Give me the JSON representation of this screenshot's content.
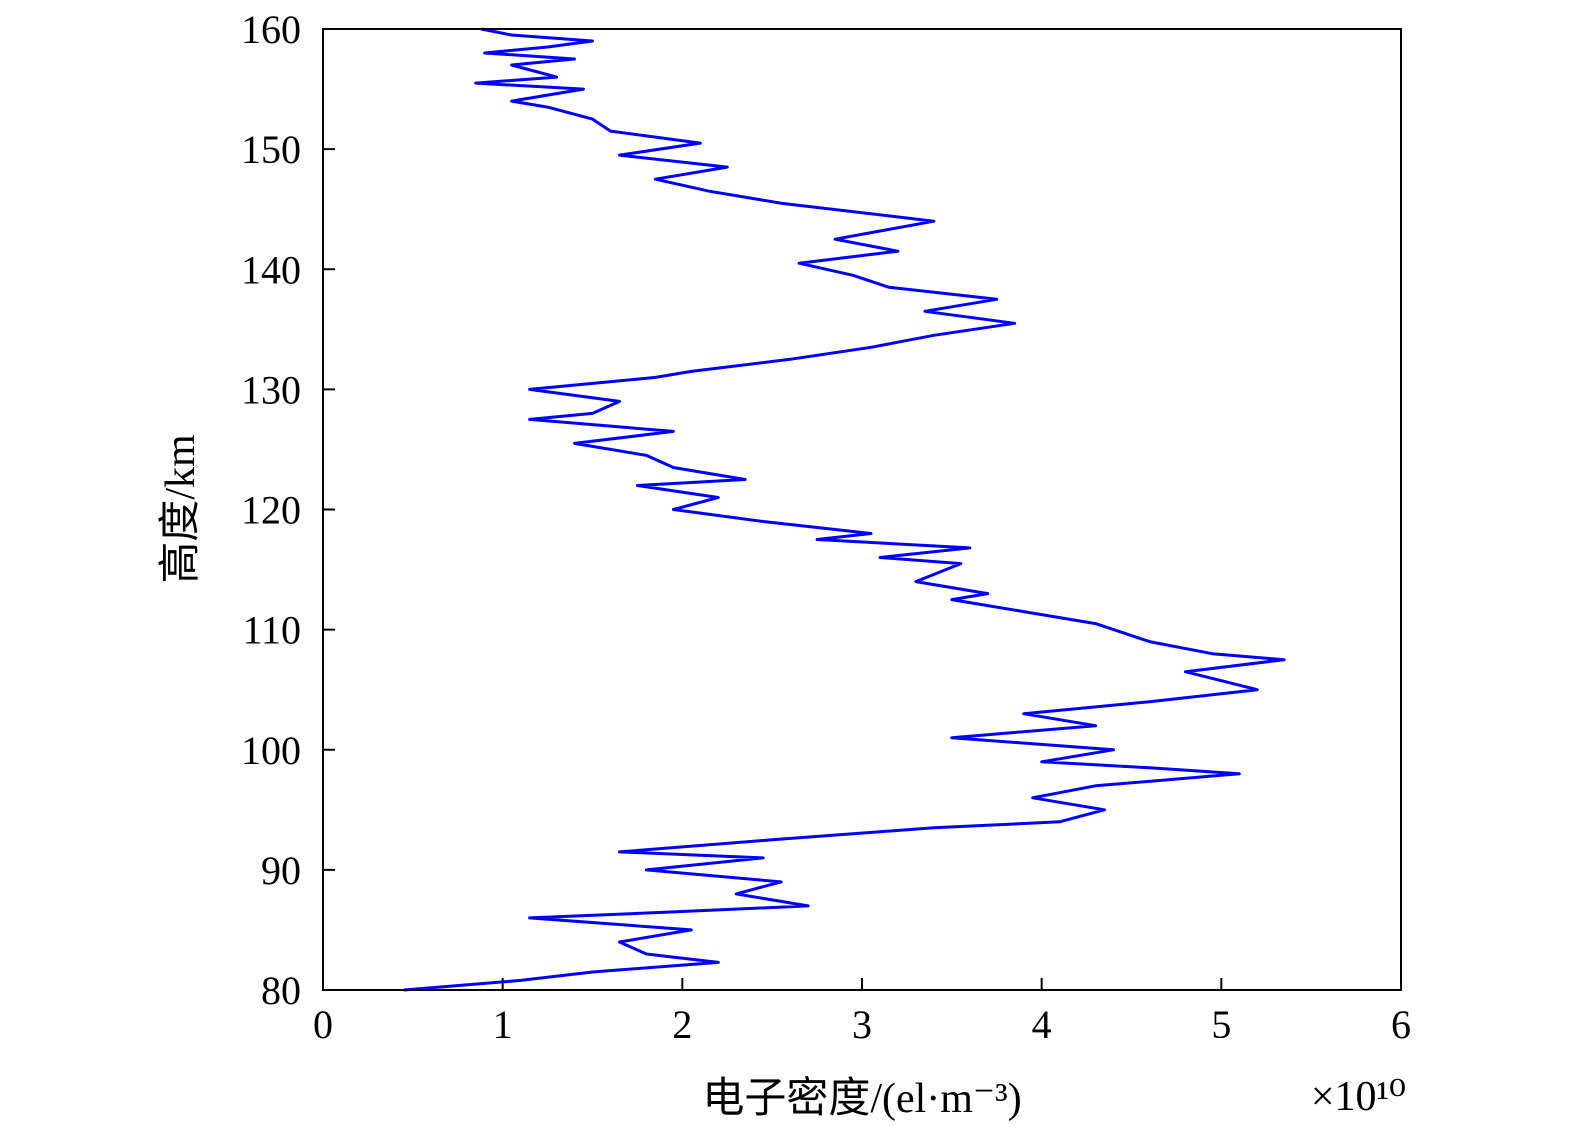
{
  "chart_data": {
    "type": "line",
    "title": "",
    "xlabel": "电子密度/(el·m⁻³)",
    "ylabel": "高度/km",
    "x_scale_note": "×10¹⁰",
    "xlim": [
      0,
      6
    ],
    "ylim": [
      80,
      160
    ],
    "x_ticks": [
      "0",
      "1",
      "2",
      "3",
      "4",
      "5",
      "6"
    ],
    "y_ticks": [
      "80",
      "90",
      "100",
      "110",
      "120",
      "130",
      "140",
      "150",
      "160"
    ],
    "grid": false,
    "legend": "none",
    "series": [
      {
        "color": "#0000ff",
        "x": [
          0.45,
          1.1,
          1.5,
          2.2,
          1.8,
          1.65,
          2.05,
          1.6,
          1.15,
          1.95,
          2.7,
          2.3,
          2.55,
          1.8,
          2.45,
          1.65,
          2.5,
          3.4,
          4.1,
          4.35,
          3.95,
          4.3,
          5.1,
          4.6,
          4.0,
          4.4,
          3.5,
          4.3,
          3.9,
          4.6,
          5.2,
          4.8,
          5.35,
          4.95,
          4.6,
          4.3,
          3.9,
          3.5,
          3.7,
          3.3,
          3.55,
          3.1,
          3.6,
          2.75,
          3.05,
          2.45,
          1.95,
          2.2,
          1.75,
          2.35,
          1.95,
          1.8,
          1.4,
          1.95,
          1.15,
          1.5,
          1.65,
          1.15,
          1.85,
          2.05,
          2.6,
          3.05,
          3.4,
          3.85,
          3.35,
          3.75,
          3.15,
          2.95,
          2.65,
          3.2,
          2.85,
          3.4,
          2.55,
          2.15,
          1.85,
          2.25,
          1.65,
          2.1,
          1.6,
          1.5,
          1.25,
          1.05,
          1.45,
          0.85,
          1.3,
          1.05,
          1.4,
          0.9,
          1.25,
          1.5,
          1.05,
          0.88
        ],
        "y": [
          80.0,
          80.8,
          81.5,
          82.3,
          83.0,
          84.0,
          85.0,
          85.5,
          86.0,
          86.5,
          87.0,
          88.0,
          89.0,
          90.0,
          91.0,
          91.5,
          92.5,
          93.5,
          94.0,
          95.0,
          96.0,
          97.0,
          98.0,
          98.5,
          99.0,
          100.0,
          101.0,
          102.0,
          103.0,
          104.0,
          105.0,
          106.5,
          107.5,
          108.0,
          109.0,
          110.5,
          111.5,
          112.5,
          113.0,
          114.0,
          115.5,
          116.0,
          116.8,
          117.5,
          118.0,
          119.0,
          120.0,
          121.0,
          122.0,
          122.5,
          123.5,
          124.5,
          125.5,
          126.5,
          127.5,
          128.0,
          129.0,
          130.0,
          131.0,
          131.5,
          132.5,
          133.5,
          134.5,
          135.5,
          136.5,
          137.5,
          138.5,
          139.5,
          140.5,
          141.5,
          142.5,
          144.0,
          145.5,
          146.5,
          147.5,
          148.5,
          149.5,
          150.5,
          151.5,
          152.5,
          153.5,
          154.0,
          155.0,
          155.5,
          156.0,
          157.0,
          157.5,
          158.0,
          158.5,
          159.0,
          159.5,
          160.0
        ]
      }
    ]
  }
}
